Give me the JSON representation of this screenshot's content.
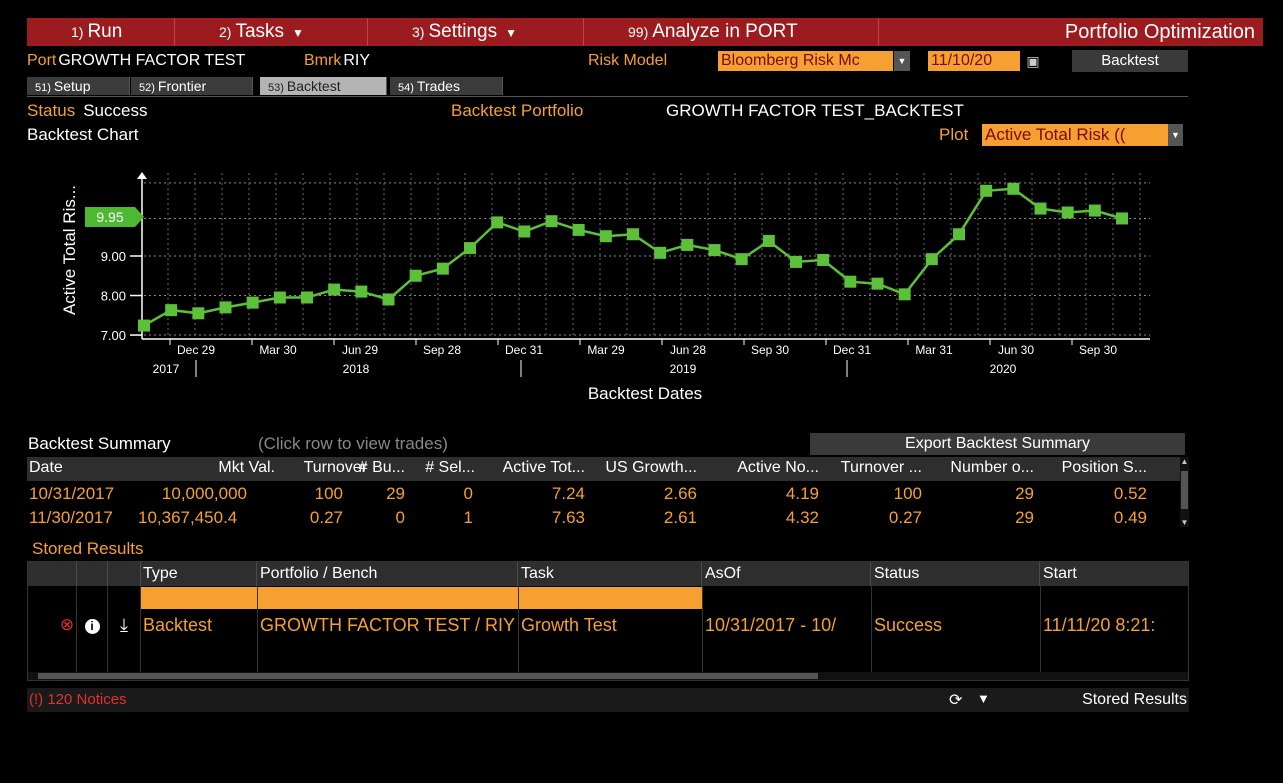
{
  "menu": {
    "run": {
      "num": "1)",
      "label": "Run"
    },
    "tasks": {
      "num": "2)",
      "label": "Tasks"
    },
    "settings": {
      "num": "3)",
      "label": "Settings"
    },
    "analyze": {
      "num": "99)",
      "label": "Analyze in PORT"
    },
    "title": "Portfolio Optimization"
  },
  "header": {
    "port_label": "Port",
    "port_value": "GROWTH FACTOR TEST",
    "bmrk_label": "Bmrk",
    "bmrk_value": "RIY",
    "risk_model_label": "Risk Model",
    "risk_model_value": "Bloomberg Risk Mc",
    "date_value": "11/10/20",
    "backtest_button": "Backtest"
  },
  "tabs": [
    {
      "num": "51)",
      "label": "Setup"
    },
    {
      "num": "52)",
      "label": "Frontier"
    },
    {
      "num": "53)",
      "label": "Backtest"
    },
    {
      "num": "54)",
      "label": "Trades"
    }
  ],
  "status": {
    "label": "Status",
    "value": "Success",
    "portfolio_label": "Backtest Portfolio",
    "portfolio_value": "GROWTH FACTOR TEST_BACKTEST",
    "chart_title": "Backtest Chart",
    "plot_label": "Plot",
    "plot_value": "Active Total Risk (("
  },
  "chart_data": {
    "type": "line",
    "xlabel": "Backtest Dates",
    "ylabel": "Active Total Ris...",
    "y_ticks": [
      "7.00",
      "8.00",
      "9.00"
    ],
    "current_value_label": "9.95",
    "ylim": [
      6.9,
      11.1
    ],
    "x_tick_labels": [
      "Dec 29",
      "Mar 30",
      "Jun 29",
      "Sep 28",
      "Dec 31",
      "Mar 29",
      "Jun 28",
      "Sep 30",
      "Dec 31",
      "Mar 31",
      "Jun 30",
      "Sep 30"
    ],
    "year_labels": [
      "2017",
      "2018",
      "2019",
      "2020"
    ],
    "grid": true,
    "color": "#5cc03a",
    "values": [
      7.24,
      7.63,
      7.55,
      7.7,
      7.82,
      7.95,
      7.95,
      8.15,
      8.1,
      7.9,
      8.5,
      8.68,
      9.2,
      9.85,
      9.62,
      9.88,
      9.66,
      9.5,
      9.55,
      9.08,
      9.28,
      9.15,
      8.92,
      9.38,
      8.85,
      8.9,
      8.35,
      8.3,
      8.03,
      8.92,
      9.55,
      10.65,
      10.7,
      10.2,
      10.1,
      10.15,
      9.95
    ]
  },
  "summary": {
    "title": "Backtest Summary",
    "hint": "(Click row to view trades)",
    "export_button": "Export Backtest Summary",
    "columns": [
      "Date",
      "Mkt Val.",
      "Turnover",
      "# Bu...",
      "# Sel...",
      "Active Tot...",
      "US Growth...",
      "Active No...",
      "Turnover ...",
      "Number o...",
      "Position S..."
    ],
    "rows": [
      [
        "10/31/2017",
        "10,000,000",
        "100",
        "29",
        "0",
        "7.24",
        "2.66",
        "4.19",
        "100",
        "29",
        "0.52"
      ],
      [
        "11/30/2017",
        "10,367,450.4",
        "0.27",
        "0",
        "1",
        "7.63",
        "2.61",
        "4.32",
        "0.27",
        "29",
        "0.49"
      ]
    ]
  },
  "stored": {
    "title": "Stored Results",
    "columns": [
      "Type",
      "Portfolio / Bench",
      "Task",
      "AsOf",
      "Status",
      "Start"
    ],
    "row": [
      "Backtest",
      "GROWTH FACTOR TEST / RIY",
      "Growth Test",
      "10/31/2017 - 10/",
      "Success",
      "11/11/20 8:21:"
    ]
  },
  "footer": {
    "notices": "(!) 120 Notices",
    "right_label": "Stored Results"
  }
}
